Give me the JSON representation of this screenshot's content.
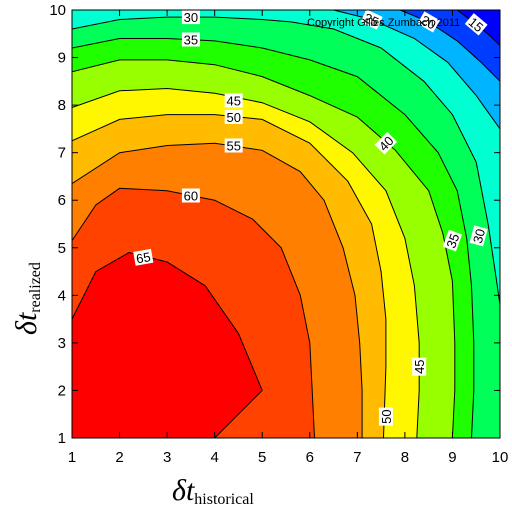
{
  "chart_data": {
    "type": "heatmap",
    "subtype": "filled contour with labeled isolines",
    "copyright": "Copyright Gilles Zumbach 2011",
    "xlabel": {
      "symbol": "δt",
      "subscript": "historical"
    },
    "ylabel": {
      "symbol": "δt",
      "subscript": "realized"
    },
    "xlim": [
      1,
      10
    ],
    "ylim": [
      1,
      10
    ],
    "x_ticks": [
      "1",
      "2",
      "3",
      "4",
      "5",
      "6",
      "7",
      "8",
      "9",
      "10"
    ],
    "y_ticks": [
      "1",
      "2",
      "3",
      "4",
      "5",
      "6",
      "7",
      "8",
      "9",
      "10"
    ],
    "colormap": {
      "min_value": 15,
      "max_value": 68,
      "stops": [
        "#0000ff",
        "#00ffff",
        "#00ff00",
        "#ffff00",
        "#ff8000",
        "#ff0000"
      ],
      "orientation": "low=blue, high=red"
    },
    "grid": false,
    "legend": "none",
    "contours": [
      {
        "level": 65,
        "label": "65",
        "points": [
          [
            1,
            3.5
          ],
          [
            1.5,
            4.5
          ],
          [
            2.2,
            4.9
          ],
          [
            3,
            4.7
          ],
          [
            3.8,
            4.2
          ],
          [
            4.5,
            3.2
          ],
          [
            5,
            2
          ],
          [
            4.5,
            1.5
          ],
          [
            4,
            1
          ]
        ]
      },
      {
        "level": 60,
        "label": "60",
        "points": [
          [
            1,
            5.15
          ],
          [
            1.5,
            5.9
          ],
          [
            2,
            6.25
          ],
          [
            3,
            6.2
          ],
          [
            4,
            6
          ],
          [
            4.8,
            5.6
          ],
          [
            5.4,
            5
          ],
          [
            5.8,
            4
          ],
          [
            6,
            3
          ],
          [
            6.05,
            2
          ],
          [
            6.1,
            1
          ]
        ]
      },
      {
        "level": 55,
        "label": "55",
        "points": [
          [
            1,
            6.35
          ],
          [
            2,
            7
          ],
          [
            3,
            7.15
          ],
          [
            4,
            7.2
          ],
          [
            5,
            7.05
          ],
          [
            5.8,
            6.6
          ],
          [
            6.3,
            6
          ],
          [
            6.7,
            5
          ],
          [
            6.95,
            4
          ],
          [
            7.05,
            3
          ],
          [
            7.1,
            2
          ],
          [
            7.1,
            1
          ]
        ]
      },
      {
        "level": 50,
        "label": "50",
        "points": [
          [
            1,
            7.25
          ],
          [
            2,
            7.7
          ],
          [
            3,
            7.8
          ],
          [
            4,
            7.8
          ],
          [
            5,
            7.7
          ],
          [
            6,
            7.2
          ],
          [
            6.8,
            6.4
          ],
          [
            7.3,
            5.5
          ],
          [
            7.5,
            4.5
          ],
          [
            7.6,
            3.5
          ],
          [
            7.6,
            2.5
          ],
          [
            7.55,
            1
          ]
        ]
      },
      {
        "level": 45,
        "label": "45",
        "points": [
          [
            1,
            7.95
          ],
          [
            2,
            8.3
          ],
          [
            3,
            8.35
          ],
          [
            4,
            8.25
          ],
          [
            5,
            8.05
          ],
          [
            6,
            7.65
          ],
          [
            6.9,
            7
          ],
          [
            7.6,
            6.2
          ],
          [
            8,
            5.2
          ],
          [
            8.2,
            4.2
          ],
          [
            8.3,
            3
          ],
          [
            8.3,
            2
          ],
          [
            8.25,
            1
          ]
        ]
      },
      {
        "level": 40,
        "label": "40",
        "points": [
          [
            1,
            8.7
          ],
          [
            2,
            8.95
          ],
          [
            3,
            8.95
          ],
          [
            4,
            8.85
          ],
          [
            5,
            8.6
          ],
          [
            6,
            8.2
          ],
          [
            7,
            7.75
          ],
          [
            7.8,
            7.05
          ],
          [
            8.5,
            6.2
          ],
          [
            8.8,
            5.3
          ],
          [
            9,
            4.3
          ],
          [
            9.05,
            3
          ],
          [
            9.05,
            2
          ],
          [
            9,
            1
          ]
        ]
      },
      {
        "level": 35,
        "label": "35",
        "points": [
          [
            1,
            9.2
          ],
          [
            2,
            9.4
          ],
          [
            3,
            9.4
          ],
          [
            4,
            9.35
          ],
          [
            5,
            9.2
          ],
          [
            6,
            8.95
          ],
          [
            7,
            8.6
          ],
          [
            8,
            7.8
          ],
          [
            8.7,
            7
          ],
          [
            9.1,
            6.2
          ],
          [
            9.3,
            5.2
          ],
          [
            9.4,
            4.2
          ],
          [
            9.45,
            3
          ],
          [
            9.45,
            2
          ],
          [
            9.4,
            1
          ]
        ]
      },
      {
        "level": 30,
        "label": "30",
        "points": [
          [
            1,
            9.6
          ],
          [
            2,
            9.8
          ],
          [
            3,
            9.85
          ],
          [
            4,
            9.85
          ],
          [
            5,
            9.8
          ],
          [
            5.6,
            9.75
          ],
          [
            6.5,
            9.6
          ],
          [
            7.5,
            9.2
          ],
          [
            8.4,
            8.5
          ],
          [
            9,
            7.8
          ],
          [
            9.5,
            6.8
          ],
          [
            9.75,
            5.5
          ],
          [
            9.9,
            4.5
          ],
          [
            10,
            3.8
          ]
        ]
      },
      {
        "level": 25,
        "label": "25",
        "points": [
          [
            6.5,
            10
          ],
          [
            7.3,
            9.8
          ],
          [
            8.2,
            9.4
          ],
          [
            8.9,
            8.9
          ],
          [
            9.5,
            8.2
          ],
          [
            10,
            7.5
          ]
        ]
      },
      {
        "level": 20,
        "label": "20",
        "points": [
          [
            7.9,
            10
          ],
          [
            8.5,
            9.75
          ],
          [
            9.1,
            9.35
          ],
          [
            9.6,
            8.9
          ],
          [
            10,
            8.5
          ]
        ]
      },
      {
        "level": 15,
        "label": "15",
        "points": [
          [
            9.1,
            10
          ],
          [
            9.5,
            9.7
          ],
          [
            9.8,
            9.45
          ],
          [
            10,
            9.25
          ]
        ]
      }
    ],
    "contour_labels": [
      {
        "text": "30",
        "x": 3.5,
        "y": 9.85,
        "angle": 0
      },
      {
        "text": "35",
        "x": 3.5,
        "y": 9.38,
        "angle": 0
      },
      {
        "text": "45",
        "x": 4.4,
        "y": 8.1,
        "angle": 0
      },
      {
        "text": "50",
        "x": 4.4,
        "y": 7.75,
        "angle": 0
      },
      {
        "text": "55",
        "x": 4.4,
        "y": 7.15,
        "angle": 0
      },
      {
        "text": "60",
        "x": 3.5,
        "y": 6.1,
        "angle": 0
      },
      {
        "text": "65",
        "x": 2.5,
        "y": 4.8,
        "angle": 10
      },
      {
        "text": "40",
        "x": 7.6,
        "y": 7.2,
        "angle": 45
      },
      {
        "text": "35",
        "x": 9.0,
        "y": 5.15,
        "angle": 70
      },
      {
        "text": "30",
        "x": 9.55,
        "y": 5.25,
        "angle": 75
      },
      {
        "text": "45",
        "x": 8.3,
        "y": 2.5,
        "angle": 90
      },
      {
        "text": "50",
        "x": 7.6,
        "y": 1.45,
        "angle": 90
      },
      {
        "text": "25",
        "x": 7.3,
        "y": 9.8,
        "angle": -25
      },
      {
        "text": "20",
        "x": 8.5,
        "y": 9.75,
        "angle": -30
      },
      {
        "text": "15",
        "x": 9.5,
        "y": 9.7,
        "angle": -40
      }
    ]
  }
}
